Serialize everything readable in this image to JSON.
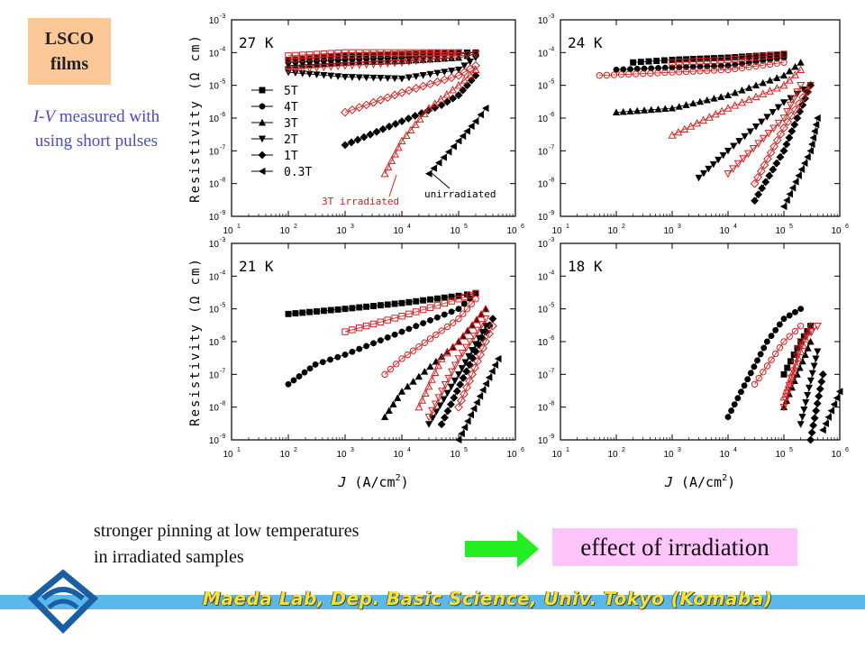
{
  "badge": {
    "line1": "LSCO",
    "line2": "films"
  },
  "note": {
    "italic": "I-V",
    "rest": " measured with",
    "line2": "using short pulses"
  },
  "bottom": {
    "line1": "stronger pinning at low temperatures",
    "line2": "in irradiated samples"
  },
  "effect_label": "effect of irradiation",
  "footer": "Maeda Lab, Dep. Basic Science, Univ. Tokyo (Komaba)",
  "colors": {
    "black": "#000000",
    "red": "#d42020",
    "badge": "#fdc897",
    "effect": "#ffc4fb",
    "footer_bar": "#5bb8e8",
    "arrow": "#22ee22"
  },
  "axes": {
    "ylabel": "Resistivity (Ω cm)",
    "xlabel_pre": "J",
    "xlabel_unit": " (A/cm",
    "xlabel_sup": "2",
    "xlabel_end": ")",
    "x_ticks": [
      "10",
      "10",
      "10",
      "10",
      "10",
      "10"
    ],
    "x_tick_exps": [
      "1",
      "2",
      "3",
      "4",
      "5",
      "6"
    ],
    "y_ticks": [
      "10",
      "10",
      "10",
      "10",
      "10",
      "10",
      "10"
    ],
    "y_tick_exps": [
      "-3",
      "-4",
      "-5",
      "-6",
      "-7",
      "-8",
      "-9"
    ]
  },
  "chart_data": [
    {
      "type": "scatter",
      "title": "27 K",
      "xscale": "log",
      "yscale": "log",
      "xlim": [
        10,
        1000000
      ],
      "ylim": [
        1e-09,
        0.001
      ],
      "legend": {
        "position": "center-left",
        "entries": [
          "5T",
          "4T",
          "3T",
          "2T",
          "1T",
          "0.3T"
        ]
      },
      "annotations": [
        "3T irradiated",
        "unirradiated"
      ],
      "series": [
        {
          "name": "5T",
          "marker": "square",
          "color": "black",
          "points": [
            [
              100,
              6e-05
            ],
            [
              1000,
              8e-05
            ],
            [
              10000,
              9e-05
            ],
            [
              100000,
              0.0001
            ],
            [
              200000,
              0.0001
            ]
          ]
        },
        {
          "name": "4T",
          "marker": "circle",
          "color": "black",
          "points": [
            [
              100,
              5e-05
            ],
            [
              1000,
              6e-05
            ],
            [
              10000,
              7e-05
            ],
            [
              100000,
              9e-05
            ],
            [
              200000,
              0.0001
            ]
          ]
        },
        {
          "name": "3T",
          "marker": "triangle-up",
          "color": "black",
          "points": [
            [
              100,
              4e-05
            ],
            [
              1000,
              5e-05
            ],
            [
              10000,
              5.5e-05
            ],
            [
              100000,
              7e-05
            ],
            [
              200000,
              9e-05
            ]
          ]
        },
        {
          "name": "2T",
          "marker": "triangle-down",
          "color": "black",
          "points": [
            [
              100,
              2.5e-05
            ],
            [
              1000,
              1.8e-05
            ],
            [
              10000,
              1.6e-05
            ],
            [
              100000,
              3e-05
            ],
            [
              200000,
              7e-05
            ]
          ]
        },
        {
          "name": "1T",
          "marker": "diamond",
          "color": "black",
          "points": [
            [
              1000,
              1.5e-07
            ],
            [
              10000,
              8e-07
            ],
            [
              50000,
              2.5e-06
            ],
            [
              100000,
              5e-06
            ],
            [
              200000,
              2e-05
            ]
          ]
        },
        {
          "name": "0.3T",
          "marker": "triangle-left",
          "color": "black",
          "points": [
            [
              30000,
              2e-08
            ],
            [
              100000,
              2e-07
            ],
            [
              200000,
              8e-07
            ],
            [
              300000,
              2e-06
            ]
          ]
        },
        {
          "name": "5T irr",
          "marker": "square",
          "color": "red",
          "open": true,
          "points": [
            [
              100,
              8e-05
            ],
            [
              1000,
              0.0001
            ],
            [
              10000,
              0.0001
            ],
            [
              100000,
              0.0001
            ]
          ]
        },
        {
          "name": "4T irr",
          "marker": "circle",
          "color": "red",
          "open": true,
          "points": [
            [
              100,
              6e-05
            ],
            [
              1000,
              8e-05
            ],
            [
              10000,
              9e-05
            ],
            [
              100000,
              0.0001
            ]
          ]
        },
        {
          "name": "2T irr",
          "marker": "triangle-down",
          "color": "red",
          "open": true,
          "points": [
            [
              100,
              3e-05
            ],
            [
              1000,
              4e-05
            ],
            [
              10000,
              5e-05
            ],
            [
              100000,
              8e-05
            ],
            [
              200000,
              9e-05
            ]
          ]
        },
        {
          "name": "1T irr",
          "marker": "diamond",
          "color": "red",
          "open": true,
          "points": [
            [
              1000,
              1.5e-06
            ],
            [
              10000,
              6e-06
            ],
            [
              100000,
              2e-05
            ],
            [
              200000,
              4e-05
            ]
          ]
        },
        {
          "name": "3T irr",
          "marker": "triangle-up",
          "color": "red",
          "open": true,
          "points": [
            [
              5000,
              2e-08
            ],
            [
              10000,
              2e-07
            ],
            [
              30000,
              2e-06
            ],
            [
              100000,
              1e-05
            ],
            [
              200000,
              3e-05
            ]
          ]
        }
      ]
    },
    {
      "type": "scatter",
      "title": "24 K",
      "xscale": "log",
      "yscale": "log",
      "xlim": [
        10,
        1000000
      ],
      "ylim": [
        1e-09,
        0.001
      ],
      "series": [
        {
          "name": "5T",
          "marker": "square",
          "color": "black",
          "points": [
            [
              200,
              5e-05
            ],
            [
              1000,
              6e-05
            ],
            [
              10000,
              7e-05
            ],
            [
              100000,
              9e-05
            ]
          ]
        },
        {
          "name": "4T",
          "marker": "circle",
          "color": "black",
          "points": [
            [
              100,
              3e-05
            ],
            [
              1000,
              3.5e-05
            ],
            [
              10000,
              4e-05
            ],
            [
              100000,
              7e-05
            ]
          ]
        },
        {
          "name": "3T",
          "marker": "triangle-up",
          "color": "black",
          "points": [
            [
              100,
              1.5e-06
            ],
            [
              1000,
              2e-06
            ],
            [
              10000,
              5e-06
            ],
            [
              100000,
              2e-05
            ],
            [
              200000,
              5e-05
            ]
          ]
        },
        {
          "name": "2T",
          "marker": "triangle-down",
          "color": "black",
          "points": [
            [
              3000,
              1.5e-08
            ],
            [
              10000,
              1e-07
            ],
            [
              100000,
              3e-06
            ],
            [
              300000,
              1e-05
            ]
          ]
        },
        {
          "name": "1T",
          "marker": "diamond",
          "color": "black",
          "points": [
            [
              30000,
              3e-09
            ],
            [
              100000,
              1e-07
            ],
            [
              300000,
              1e-05
            ]
          ]
        },
        {
          "name": "0.3T",
          "marker": "triangle-left",
          "color": "black",
          "points": [
            [
              100000,
              2e-09
            ],
            [
              300000,
              1e-07
            ],
            [
              400000,
              1e-06
            ]
          ]
        },
        {
          "name": "5T irr",
          "marker": "square",
          "color": "red",
          "open": true,
          "points": [
            [
              1000,
              5e-05
            ],
            [
              10000,
              6e-05
            ],
            [
              100000,
              9e-05
            ]
          ]
        },
        {
          "name": "4T irr",
          "marker": "circle",
          "color": "red",
          "open": true,
          "points": [
            [
              50,
              2e-05
            ],
            [
              1000,
              2.5e-05
            ],
            [
              10000,
              3e-05
            ],
            [
              100000,
              5e-05
            ]
          ]
        },
        {
          "name": "3T irr",
          "marker": "triangle-up",
          "color": "red",
          "open": true,
          "points": [
            [
              1000,
              3e-07
            ],
            [
              10000,
              2e-06
            ],
            [
              100000,
              1e-05
            ],
            [
              200000,
              3e-05
            ]
          ]
        },
        {
          "name": "2T irr",
          "marker": "triangle-down",
          "color": "red",
          "open": true,
          "points": [
            [
              10000,
              2e-08
            ],
            [
              100000,
              1e-06
            ],
            [
              200000,
              1e-05
            ]
          ]
        },
        {
          "name": "1T irr",
          "marker": "diamond",
          "color": "red",
          "open": true,
          "points": [
            [
              30000,
              1e-08
            ],
            [
              100000,
              5e-07
            ],
            [
              300000,
              1e-05
            ]
          ]
        }
      ]
    },
    {
      "type": "scatter",
      "title": "21 K",
      "xscale": "log",
      "yscale": "log",
      "xlim": [
        10,
        1000000
      ],
      "ylim": [
        1e-09,
        0.001
      ],
      "series": [
        {
          "name": "5T",
          "marker": "square",
          "color": "black",
          "points": [
            [
              100,
              7e-06
            ],
            [
              1000,
              1e-05
            ],
            [
              10000,
              1.5e-05
            ],
            [
              100000,
              2.5e-05
            ],
            [
              200000,
              3e-05
            ]
          ]
        },
        {
          "name": "4T",
          "marker": "circle",
          "color": "black",
          "points": [
            [
              100,
              5e-08
            ],
            [
              300,
              2e-07
            ],
            [
              1000,
              4e-07
            ],
            [
              10000,
              2e-06
            ],
            [
              100000,
              1e-05
            ],
            [
              200000,
              3e-05
            ]
          ]
        },
        {
          "name": "3T",
          "marker": "triangle-up",
          "color": "black",
          "points": [
            [
              5000,
              5e-09
            ],
            [
              10000,
              3e-08
            ],
            [
              100000,
              1e-06
            ],
            [
              300000,
              1e-05
            ]
          ]
        },
        {
          "name": "2T",
          "marker": "triangle-down",
          "color": "black",
          "points": [
            [
              30000,
              3e-09
            ],
            [
              100000,
              1e-07
            ],
            [
              300000,
              3e-06
            ]
          ]
        },
        {
          "name": "1T",
          "marker": "diamond",
          "color": "black",
          "points": [
            [
              50000,
              3e-09
            ],
            [
              200000,
              5e-07
            ],
            [
              400000,
              5e-06
            ]
          ]
        },
        {
          "name": "0.3T",
          "marker": "triangle-left",
          "color": "black",
          "points": [
            [
              100000,
              1e-09
            ],
            [
              500000,
              3e-07
            ]
          ]
        },
        {
          "name": "5T irr",
          "marker": "square",
          "color": "red",
          "open": true,
          "points": [
            [
              1000,
              2e-06
            ],
            [
              10000,
              6e-06
            ],
            [
              100000,
              2e-05
            ],
            [
              200000,
              3e-05
            ]
          ]
        },
        {
          "name": "4T irr",
          "marker": "circle",
          "color": "red",
          "open": true,
          "points": [
            [
              5000,
              1e-07
            ],
            [
              10000,
              3e-07
            ],
            [
              100000,
              5e-06
            ],
            [
              200000,
              2e-05
            ]
          ]
        },
        {
          "name": "3T irr",
          "marker": "triangle-up",
          "color": "red",
          "open": true,
          "points": [
            [
              20000,
              1e-08
            ],
            [
              50000,
              3e-07
            ],
            [
              100000,
              1e-06
            ],
            [
              300000,
              1e-05
            ]
          ]
        },
        {
          "name": "2T irr",
          "marker": "triangle-down",
          "color": "red",
          "open": true,
          "points": [
            [
              30000,
              5e-09
            ],
            [
              100000,
              3e-07
            ],
            [
              300000,
              5e-06
            ]
          ]
        },
        {
          "name": "1T irr",
          "marker": "diamond",
          "color": "red",
          "open": true,
          "points": [
            [
              100000,
              1e-08
            ],
            [
              300000,
              1e-06
            ],
            [
              400000,
              3e-06
            ]
          ]
        }
      ]
    },
    {
      "type": "scatter",
      "title": "18 K",
      "xscale": "log",
      "yscale": "log",
      "xlim": [
        10,
        1000000
      ],
      "ylim": [
        1e-09,
        0.001
      ],
      "series": [
        {
          "name": "5T",
          "marker": "square",
          "color": "black",
          "points": [
            [
              100000,
              1e-07
            ],
            [
              200000,
              1e-06
            ],
            [
              300000,
              3e-06
            ]
          ]
        },
        {
          "name": "4T",
          "marker": "circle",
          "color": "black",
          "points": [
            [
              10000,
              5e-09
            ],
            [
              50000,
              1e-06
            ],
            [
              100000,
              5e-06
            ],
            [
              200000,
              1e-05
            ]
          ]
        },
        {
          "name": "3T",
          "marker": "triangle-up",
          "color": "black",
          "points": [
            [
              100000,
              1e-08
            ],
            [
              300000,
              1e-06
            ]
          ]
        },
        {
          "name": "2T",
          "marker": "triangle-down",
          "color": "black",
          "points": [
            [
              200000,
              3e-09
            ],
            [
              400000,
              5e-07
            ]
          ]
        },
        {
          "name": "1T",
          "marker": "diamond",
          "color": "black",
          "points": [
            [
              300000,
              1e-09
            ],
            [
              500000,
              1e-07
            ]
          ]
        },
        {
          "name": "0.3T",
          "marker": "triangle-left",
          "color": "black",
          "points": [
            [
              500000,
              2e-09
            ],
            [
              1000000,
              3e-08
            ]
          ]
        },
        {
          "name": "4T irr",
          "marker": "circle",
          "color": "red",
          "open": true,
          "points": [
            [
              30000,
              5e-08
            ],
            [
              100000,
              1e-06
            ],
            [
              200000,
              3e-06
            ]
          ]
        },
        {
          "name": "3T irr",
          "marker": "triangle-up",
          "color": "red",
          "open": true,
          "points": [
            [
              100000,
              2e-08
            ],
            [
              300000,
              3e-06
            ]
          ]
        },
        {
          "name": "2T irr",
          "marker": "triangle-down",
          "color": "red",
          "open": true,
          "points": [
            [
              100000,
              1e-08
            ],
            [
              200000,
              1e-06
            ],
            [
              400000,
              3e-06
            ]
          ]
        }
      ]
    }
  ]
}
